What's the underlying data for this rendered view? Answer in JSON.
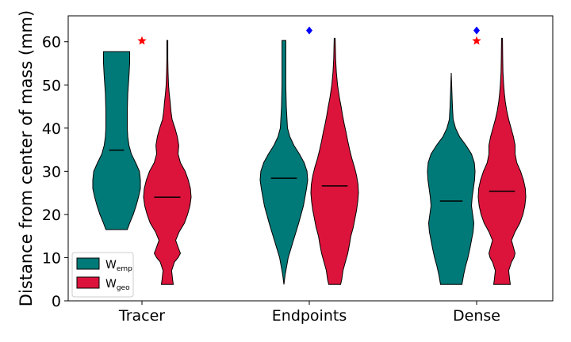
{
  "chart_data": {
    "type": "violin",
    "categories": [
      "Tracer",
      "Endpoints",
      "Dense"
    ],
    "ylabel": "Distance from center of mass (mm)",
    "xlabel": "",
    "title": "",
    "ylim": [
      0,
      66
    ],
    "yticks": [
      0,
      10,
      20,
      30,
      40,
      50,
      60
    ],
    "legend": {
      "position": "lower-left",
      "entries": [
        {
          "base": "W",
          "sub": "emp",
          "color": "#007a78"
        },
        {
          "base": "W",
          "sub": "geo",
          "color": "#dc143c"
        }
      ]
    },
    "series": [
      {
        "name": "W_emp",
        "color": "#007a78",
        "violins": [
          {
            "median": 34.9,
            "profile": [
              [
                16.5,
                0.45
              ],
              [
                18,
                0.55
              ],
              [
                20,
                0.7
              ],
              [
                22,
                0.82
              ],
              [
                24,
                0.92
              ],
              [
                26,
                1.0
              ],
              [
                28,
                1.0
              ],
              [
                30,
                0.96
              ],
              [
                32,
                0.8
              ],
              [
                34,
                0.62
              ],
              [
                36,
                0.52
              ],
              [
                38,
                0.47
              ],
              [
                40,
                0.45
              ],
              [
                44,
                0.45
              ],
              [
                48,
                0.47
              ],
              [
                52,
                0.52
              ],
              [
                55,
                0.55
              ],
              [
                57.7,
                0.55
              ]
            ]
          },
          {
            "median": 28.4,
            "profile": [
              [
                3.8,
                0.0
              ],
              [
                6,
                0.05
              ],
              [
                10,
                0.18
              ],
              [
                14,
                0.4
              ],
              [
                18,
                0.62
              ],
              [
                22,
                0.82
              ],
              [
                26,
                0.95
              ],
              [
                28,
                1.0
              ],
              [
                30,
                0.97
              ],
              [
                32,
                0.85
              ],
              [
                34,
                0.65
              ],
              [
                36,
                0.42
              ],
              [
                38,
                0.25
              ],
              [
                40,
                0.15
              ],
              [
                45,
                0.1
              ],
              [
                50,
                0.08
              ],
              [
                55,
                0.08
              ],
              [
                60.3,
                0.08
              ]
            ]
          },
          {
            "median": 23.1,
            "profile": [
              [
                3.8,
                0.45
              ],
              [
                6,
                0.52
              ],
              [
                8,
                0.6
              ],
              [
                10,
                0.7
              ],
              [
                12,
                0.78
              ],
              [
                14,
                0.85
              ],
              [
                16,
                0.92
              ],
              [
                18,
                0.95
              ],
              [
                20,
                0.9
              ],
              [
                22,
                0.85
              ],
              [
                24,
                0.88
              ],
              [
                26,
                0.93
              ],
              [
                28,
                0.98
              ],
              [
                30,
                1.0
              ],
              [
                32,
                0.97
              ],
              [
                34,
                0.85
              ],
              [
                36,
                0.62
              ],
              [
                38,
                0.35
              ],
              [
                40,
                0.18
              ],
              [
                42,
                0.08
              ],
              [
                45,
                0.05
              ],
              [
                48,
                0.03
              ],
              [
                52.8,
                0.0
              ]
            ]
          }
        ]
      },
      {
        "name": "W_geo",
        "color": "#dc143c",
        "violins": [
          {
            "median": 24.0,
            "profile": [
              [
                3.8,
                0.25
              ],
              [
                5,
                0.22
              ],
              [
                7,
                0.18
              ],
              [
                9,
                0.3
              ],
              [
                10,
                0.45
              ],
              [
                11,
                0.55
              ],
              [
                12,
                0.48
              ],
              [
                14,
                0.35
              ],
              [
                16,
                0.5
              ],
              [
                18,
                0.72
              ],
              [
                20,
                0.85
              ],
              [
                22,
                0.95
              ],
              [
                24,
                1.0
              ],
              [
                26,
                0.97
              ],
              [
                28,
                0.88
              ],
              [
                30,
                0.75
              ],
              [
                32,
                0.55
              ],
              [
                34,
                0.45
              ],
              [
                36,
                0.48
              ],
              [
                38,
                0.42
              ],
              [
                40,
                0.32
              ],
              [
                42,
                0.2
              ],
              [
                44,
                0.15
              ],
              [
                46,
                0.12
              ],
              [
                48,
                0.08
              ],
              [
                50,
                0.05
              ],
              [
                53,
                0.03
              ],
              [
                56,
                0.02
              ],
              [
                60.3,
                0.02
              ]
            ]
          },
          {
            "median": 26.6,
            "profile": [
              [
                3.8,
                0.25
              ],
              [
                5,
                0.3
              ],
              [
                7,
                0.35
              ],
              [
                9,
                0.45
              ],
              [
                11,
                0.55
              ],
              [
                13,
                0.62
              ],
              [
                15,
                0.68
              ],
              [
                17,
                0.78
              ],
              [
                19,
                0.85
              ],
              [
                21,
                0.92
              ],
              [
                23,
                0.97
              ],
              [
                25,
                1.0
              ],
              [
                27,
                0.98
              ],
              [
                29,
                0.92
              ],
              [
                31,
                0.83
              ],
              [
                33,
                0.72
              ],
              [
                35,
                0.63
              ],
              [
                37,
                0.55
              ],
              [
                39,
                0.48
              ],
              [
                41,
                0.4
              ],
              [
                43,
                0.33
              ],
              [
                45,
                0.27
              ],
              [
                47,
                0.2
              ],
              [
                50,
                0.12
              ],
              [
                53,
                0.07
              ],
              [
                56,
                0.04
              ],
              [
                60.8,
                0.02
              ]
            ]
          },
          {
            "median": 25.4,
            "profile": [
              [
                3.8,
                0.35
              ],
              [
                5,
                0.32
              ],
              [
                7,
                0.28
              ],
              [
                9,
                0.4
              ],
              [
                10,
                0.5
              ],
              [
                11,
                0.55
              ],
              [
                12,
                0.5
              ],
              [
                14,
                0.4
              ],
              [
                16,
                0.55
              ],
              [
                18,
                0.75
              ],
              [
                20,
                0.88
              ],
              [
                22,
                0.96
              ],
              [
                24,
                1.0
              ],
              [
                26,
                0.98
              ],
              [
                28,
                0.9
              ],
              [
                30,
                0.78
              ],
              [
                32,
                0.62
              ],
              [
                34,
                0.55
              ],
              [
                36,
                0.55
              ],
              [
                38,
                0.48
              ],
              [
                40,
                0.38
              ],
              [
                42,
                0.28
              ],
              [
                44,
                0.2
              ],
              [
                46,
                0.14
              ],
              [
                48,
                0.1
              ],
              [
                50,
                0.07
              ],
              [
                53,
                0.04
              ],
              [
                56,
                0.03
              ],
              [
                60.8,
                0.02
              ]
            ]
          }
        ]
      }
    ],
    "annotations": [
      {
        "category": "Tracer",
        "symbol": "star",
        "color": "#ff0000",
        "y": 60.2
      },
      {
        "category": "Endpoints",
        "symbol": "diamond",
        "color": "#0000ff",
        "y": 62.6
      },
      {
        "category": "Dense",
        "symbol": "diamond",
        "color": "#0000ff",
        "y": 62.6
      },
      {
        "category": "Dense",
        "symbol": "star",
        "color": "#ff0000",
        "y": 60.2
      }
    ]
  }
}
